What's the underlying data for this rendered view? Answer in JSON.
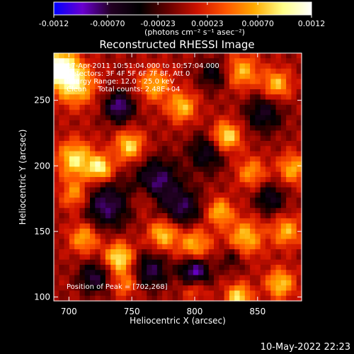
{
  "chart_data": {
    "type": "heatmap",
    "title": "Reconstructed RHESSI Image",
    "xlabel": "Heliocentric X (arcsec)",
    "ylabel": "Heliocentric Y (arcsec)",
    "xlim": [
      688,
      885
    ],
    "ylim": [
      97,
      286
    ],
    "x_ticks": [
      700,
      750,
      800,
      850
    ],
    "y_ticks": [
      100,
      150,
      200,
      250
    ],
    "colorbar": {
      "range": [
        -0.0012,
        0.0012
      ],
      "ticks": [
        "-0.0012",
        "-0.00070",
        "-0.00023",
        "0.00023",
        "0.00070",
        "0.0012"
      ],
      "units": "(photons cm⁻² s⁻¹ asec⁻²)",
      "colors": [
        "#0000ff",
        "#6a00d0",
        "#220022",
        "#000000",
        "#660000",
        "#cc1100",
        "#ff5500",
        "#ffaa00",
        "#ffff88",
        "#ffffff"
      ]
    },
    "info_lines": [
      "17-Apr-2011 10:51:04.000 to 10:57:04.000",
      "Detectors: 3F 4F 5F 6F 7F 8F, Att 0",
      "Energy Range: 12.0 - 25.0 keV",
      "Clean     Total counts: 2.48E+04"
    ],
    "peak_text": "Position of Peak = [702,268]",
    "peak_position": [
      702,
      268
    ],
    "blobs": [
      {
        "x": 693,
        "y": 275,
        "v": 0.00125,
        "s": 9
      },
      {
        "x": 705,
        "y": 262,
        "v": 0.0009,
        "s": 11
      },
      {
        "x": 705,
        "y": 205,
        "v": 0.0009,
        "s": 10
      },
      {
        "x": 725,
        "y": 198,
        "v": 0.00095,
        "s": 7
      },
      {
        "x": 748,
        "y": 215,
        "v": 0.00085,
        "s": 8
      },
      {
        "x": 768,
        "y": 262,
        "v": 0.0007,
        "s": 9
      },
      {
        "x": 790,
        "y": 245,
        "v": 0.00075,
        "s": 8
      },
      {
        "x": 825,
        "y": 222,
        "v": 0.00095,
        "s": 8
      },
      {
        "x": 838,
        "y": 272,
        "v": 0.0007,
        "s": 9
      },
      {
        "x": 865,
        "y": 262,
        "v": 0.00075,
        "s": 8
      },
      {
        "x": 845,
        "y": 195,
        "v": 0.0006,
        "s": 8
      },
      {
        "x": 878,
        "y": 198,
        "v": 0.0007,
        "s": 8
      },
      {
        "x": 820,
        "y": 165,
        "v": 0.00075,
        "s": 7
      },
      {
        "x": 840,
        "y": 145,
        "v": 0.00075,
        "s": 10
      },
      {
        "x": 800,
        "y": 140,
        "v": 0.0007,
        "s": 9
      },
      {
        "x": 775,
        "y": 148,
        "v": 0.0008,
        "s": 8
      },
      {
        "x": 740,
        "y": 130,
        "v": 0.00095,
        "s": 8
      },
      {
        "x": 712,
        "y": 145,
        "v": 0.0007,
        "s": 8
      },
      {
        "x": 705,
        "y": 178,
        "v": 0.0006,
        "s": 8
      },
      {
        "x": 873,
        "y": 150,
        "v": 0.0007,
        "s": 8
      },
      {
        "x": 868,
        "y": 110,
        "v": 0.0008,
        "s": 8
      },
      {
        "x": 835,
        "y": 100,
        "v": 0.0009,
        "s": 7
      },
      {
        "x": 800,
        "y": 108,
        "v": 0.0006,
        "s": 7
      },
      {
        "x": 745,
        "y": 110,
        "v": 0.0005,
        "s": 7
      },
      {
        "x": 760,
        "y": 175,
        "v": 0.0004,
        "s": 7
      },
      {
        "x": 740,
        "y": 245,
        "v": -0.0009,
        "s": 8
      },
      {
        "x": 730,
        "y": 170,
        "v": -0.0008,
        "s": 12
      },
      {
        "x": 770,
        "y": 188,
        "v": -0.0008,
        "s": 12
      },
      {
        "x": 790,
        "y": 168,
        "v": -0.0007,
        "s": 10
      },
      {
        "x": 800,
        "y": 118,
        "v": -0.0011,
        "s": 8
      },
      {
        "x": 765,
        "y": 120,
        "v": -0.0007,
        "s": 9
      },
      {
        "x": 720,
        "y": 115,
        "v": -0.0007,
        "s": 8
      },
      {
        "x": 810,
        "y": 210,
        "v": -0.0006,
        "s": 10
      },
      {
        "x": 855,
        "y": 240,
        "v": -0.0006,
        "s": 10
      },
      {
        "x": 860,
        "y": 175,
        "v": -0.0006,
        "s": 8
      },
      {
        "x": 815,
        "y": 270,
        "v": -0.0005,
        "s": 8
      },
      {
        "x": 830,
        "y": 130,
        "v": -0.0004,
        "s": 7
      }
    ]
  },
  "footer": {
    "date": "10-May-2022 22:23"
  }
}
